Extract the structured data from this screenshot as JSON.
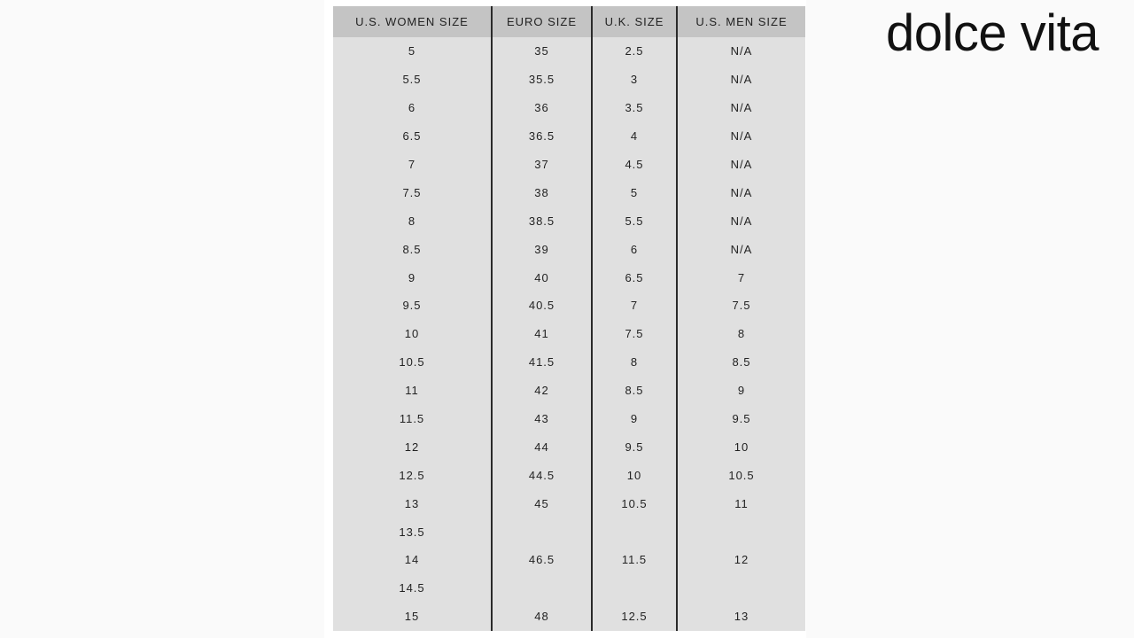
{
  "logo": "dolce vita",
  "table": {
    "headers": [
      "U.S. WOMEN SIZE",
      "EURO SIZE",
      "U.K. SIZE",
      "U.S. MEN SIZE"
    ],
    "rows": [
      [
        "5",
        "35",
        "2.5",
        "N/A"
      ],
      [
        "5.5",
        "35.5",
        "3",
        "N/A"
      ],
      [
        "6",
        "36",
        "3.5",
        "N/A"
      ],
      [
        "6.5",
        "36.5",
        "4",
        "N/A"
      ],
      [
        "7",
        "37",
        "4.5",
        "N/A"
      ],
      [
        "7.5",
        "38",
        "5",
        "N/A"
      ],
      [
        "8",
        "38.5",
        "5.5",
        "N/A"
      ],
      [
        "8.5",
        "39",
        "6",
        "N/A"
      ],
      [
        "9",
        "40",
        "6.5",
        "7"
      ],
      [
        "9.5",
        "40.5",
        "7",
        "7.5"
      ],
      [
        "10",
        "41",
        "7.5",
        "8"
      ],
      [
        "10.5",
        "41.5",
        "8",
        "8.5"
      ],
      [
        "11",
        "42",
        "8.5",
        "9"
      ],
      [
        "11.5",
        "43",
        "9",
        "9.5"
      ],
      [
        "12",
        "44",
        "9.5",
        "10"
      ],
      [
        "12.5",
        "44.5",
        "10",
        "10.5"
      ],
      [
        "13",
        "45",
        "10.5",
        "11"
      ],
      [
        "13.5",
        "",
        "",
        ""
      ],
      [
        "14",
        "46.5",
        "11.5",
        "12"
      ],
      [
        "14.5",
        "",
        "",
        ""
      ],
      [
        "15",
        "48",
        "12.5",
        "13"
      ]
    ]
  }
}
